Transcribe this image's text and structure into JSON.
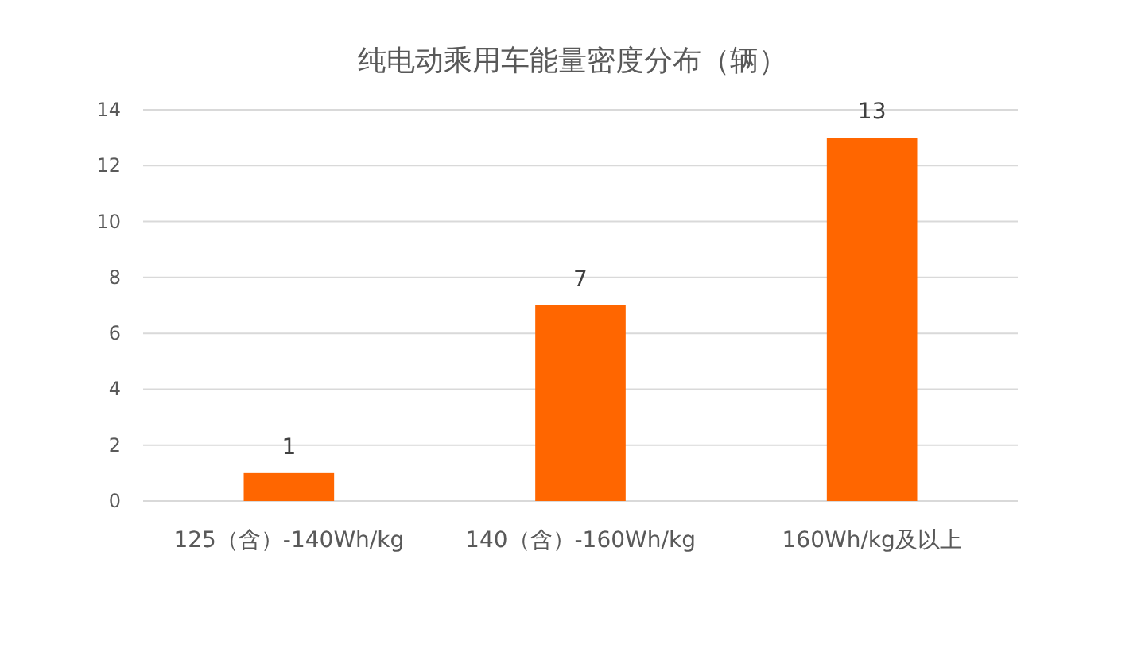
{
  "chart_data": {
    "type": "bar",
    "title": "纯电动乘用车能量密度分布（辆）",
    "categories": [
      "125（含）-140Wh/kg",
      "140（含）-160Wh/kg",
      "160Wh/kg及以上"
    ],
    "values": [
      1,
      7,
      13
    ],
    "color": "#ff6600",
    "ylim": [
      0,
      14
    ],
    "yticks": [
      0,
      2,
      4,
      6,
      8,
      10,
      12,
      14
    ],
    "grid": "y",
    "data_labels": true
  }
}
